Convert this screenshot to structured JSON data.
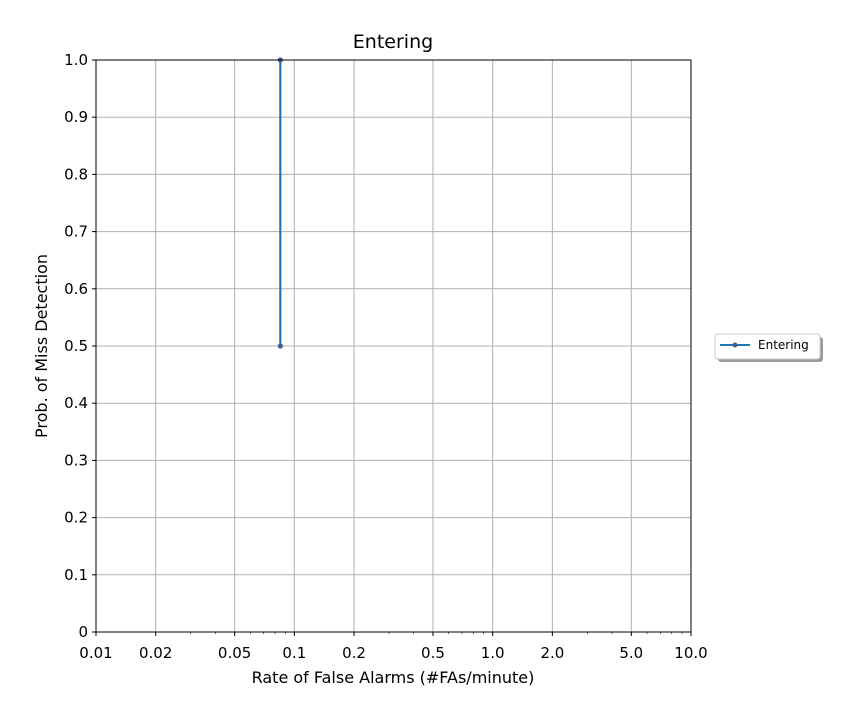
{
  "chart_data": {
    "type": "line",
    "title": "Entering",
    "xlabel": "Rate of False Alarms (#FAs/minute)",
    "ylabel": "Prob. of Miss Detection",
    "x_scale": "log",
    "xlim": [
      0.01,
      10.0
    ],
    "ylim": [
      0,
      1.0
    ],
    "grid": true,
    "legend_position": "right",
    "x_ticks": [
      0.01,
      0.02,
      0.05,
      0.1,
      0.2,
      0.5,
      1.0,
      2.0,
      5.0,
      10.0
    ],
    "x_tick_labels": [
      "0.01",
      "0.02",
      "0.05",
      "0.1",
      "0.2",
      "0.5",
      "1.0",
      "2.0",
      "5.0",
      "10.0"
    ],
    "y_ticks": [
      0,
      0.1,
      0.2,
      0.3,
      0.4,
      0.5,
      0.6,
      0.7,
      0.8,
      0.9,
      1.0
    ],
    "y_tick_labels": [
      "0",
      "0.1",
      "0.2",
      "0.3",
      "0.4",
      "0.5",
      "0.6",
      "0.7",
      "0.8",
      "0.9",
      "1.0"
    ],
    "series": [
      {
        "name": "Entering",
        "color": "#1f77b4",
        "marker_color": "#3f5f8f",
        "points": [
          {
            "x": 0.085,
            "y": 0.5
          },
          {
            "x": 0.085,
            "y": 1.0
          }
        ]
      }
    ]
  }
}
